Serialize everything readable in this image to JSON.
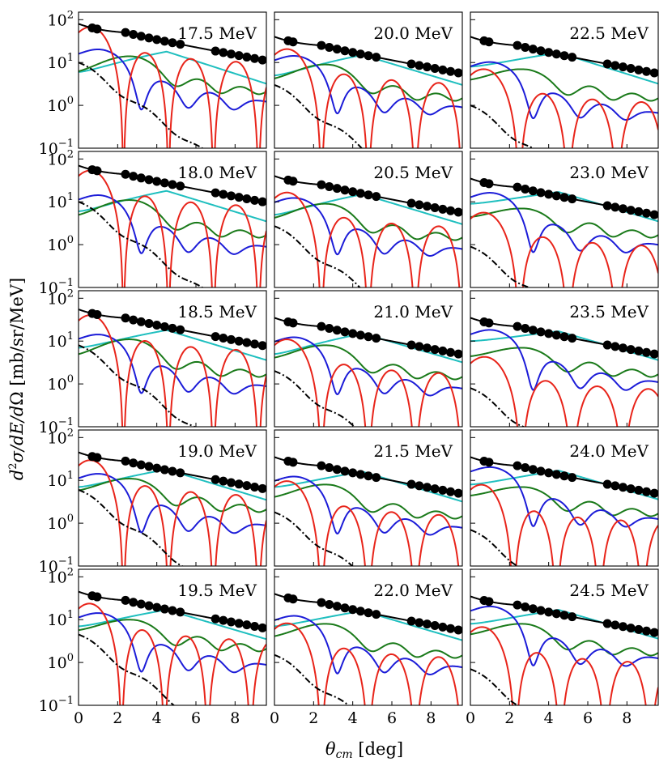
{
  "figure": {
    "xlabel": "θcm [deg]",
    "ylabel": "d²σ/dE/dΩ [mb/sr/MeV]"
  },
  "chart_data": {
    "type": "line",
    "layout": "5 rows x 3 columns of small multiples, shared axes",
    "x_axis": {
      "label": "θcm [deg]",
      "range": [
        0,
        9.6
      ],
      "ticks": [
        0,
        2,
        4,
        6,
        8
      ]
    },
    "y_axis": {
      "label": "d²σ/dE/dΩ [mb/sr/MeV]",
      "scale": "log",
      "range": [
        0.1,
        150
      ],
      "ticks": [
        {
          "base": "10",
          "exp": "2",
          "value": 100
        },
        {
          "base": "10",
          "exp": "1",
          "value": 10
        },
        {
          "base": "10",
          "exp": "0",
          "value": 1
        },
        {
          "base": "10",
          "exp": "−1",
          "value": 0.1
        }
      ]
    },
    "grid": false,
    "series_styles": [
      {
        "key": "total",
        "color": "#000000",
        "style": "solid"
      },
      {
        "key": "red",
        "color": "#e8241a",
        "style": "solid"
      },
      {
        "key": "blue",
        "color": "#1c1cd8",
        "style": "solid"
      },
      {
        "key": "green",
        "color": "#1a7a1a",
        "style": "solid"
      },
      {
        "key": "cyan",
        "color": "#1fbfbf",
        "style": "solid"
      },
      {
        "key": "dashdot",
        "color": "#000000",
        "style": "dash-dot"
      },
      {
        "key": "data",
        "color": "#000000",
        "style": "markers"
      }
    ],
    "panels": [
      {
        "label": "17.5 MeV",
        "total0": 80,
        "red0": 50,
        "redA": 2.3,
        "blue0": 10,
        "blueDip": 1.3,
        "green0": 5,
        "greenPk": 14,
        "cyan0": 6,
        "cyanPk": 18,
        "cyanEnd": 3.2,
        "dd0": 10,
        "dataStart": 0.7,
        "dataEnd": 9.5
      },
      {
        "label": "20.0 MeV",
        "total0": 40,
        "red0": 15,
        "redA": 2.4,
        "blue0": 7,
        "blueDip": 1.4,
        "green0": 3.5,
        "greenPk": 9,
        "cyan0": 5,
        "cyanPk": 15,
        "cyanEnd": 3.0,
        "dd0": 3,
        "dataStart": 0.7,
        "dataEnd": 9.5
      },
      {
        "label": "22.5 MeV",
        "total0": 40,
        "red0": 5,
        "redA": 2.5,
        "blue0": 5,
        "blueDip": 1.2,
        "green0": 3.5,
        "greenPk": 7,
        "cyan0": 8,
        "cyanPk": 17,
        "cyanEnd": 3.2,
        "dd0": 1,
        "dataStart": 0.7,
        "dataEnd": 9.5
      },
      {
        "label": "18.0 MeV",
        "total0": 70,
        "red0": 40,
        "redA": 2.3,
        "blue0": 7,
        "blueDip": 1.3,
        "green0": 4,
        "greenPk": 11,
        "cyan0": 6,
        "cyanPk": 18,
        "cyanEnd": 3.5,
        "dd0": 10,
        "dataStart": 0.7,
        "dataEnd": 9.5
      },
      {
        "label": "20.5 MeV",
        "total0": 40,
        "red0": 12,
        "redA": 2.4,
        "blue0": 6,
        "blueDip": 1.4,
        "green0": 3.5,
        "greenPk": 9,
        "cyan0": 5,
        "cyanPk": 15,
        "cyanEnd": 3.0,
        "dd0": 2.7,
        "dataStart": 0.7,
        "dataEnd": 9.5
      },
      {
        "label": "23.0 MeV",
        "total0": 35,
        "red0": 4,
        "redA": 2.5,
        "blue0": 8,
        "blueDip": 1.2,
        "green0": 4,
        "greenPk": 7,
        "cyan0": 9,
        "cyanPk": 17,
        "cyanEnd": 3.5,
        "dd0": 0.9,
        "dataStart": 0.7,
        "dataEnd": 9.5
      },
      {
        "label": "18.5 MeV",
        "total0": 55,
        "red0": 30,
        "redA": 2.3,
        "blue0": 7,
        "blueDip": 1.2,
        "green0": 4,
        "greenPk": 11,
        "cyan0": 7,
        "cyanPk": 18,
        "cyanEnd": 3.6,
        "dd0": 8,
        "dataStart": 0.7,
        "dataEnd": 9.5
      },
      {
        "label": "21.0 MeV",
        "total0": 35,
        "red0": 8,
        "redA": 2.4,
        "blue0": 6,
        "blueDip": 1.3,
        "green0": 3.5,
        "greenPk": 8,
        "cyan0": 5,
        "cyanPk": 15,
        "cyanEnd": 3.2,
        "dd0": 2,
        "dataStart": 0.7,
        "dataEnd": 9.5
      },
      {
        "label": "23.5 MeV",
        "total0": 35,
        "red0": 3,
        "redA": 2.6,
        "blue0": 9,
        "blueDip": 1.2,
        "green0": 4,
        "greenPk": 7,
        "cyan0": 10,
        "cyanPk": 17,
        "cyanEnd": 3.6,
        "dd0": 0.8,
        "dataStart": 0.7,
        "dataEnd": 9.5
      },
      {
        "label": "19.0 MeV",
        "total0": 45,
        "red0": 22,
        "redA": 2.3,
        "blue0": 7,
        "blueDip": 1.2,
        "green0": 5,
        "greenPk": 11,
        "cyan0": 7,
        "cyanPk": 18,
        "cyanEnd": 3.5,
        "dd0": 6,
        "dataStart": 0.7,
        "dataEnd": 9.5
      },
      {
        "label": "21.5 MeV",
        "total0": 35,
        "red0": 7,
        "redA": 2.4,
        "blue0": 6,
        "blueDip": 1.3,
        "green0": 3.5,
        "greenPk": 8,
        "cyan0": 7,
        "cyanPk": 16,
        "cyanEnd": 3.2,
        "dd0": 1.8,
        "dataStart": 0.7,
        "dataEnd": 9.5
      },
      {
        "label": "24.0 MeV",
        "total0": 35,
        "red0": 6,
        "redA": 2.2,
        "blue0": 10,
        "blueDip": 1.6,
        "green0": 4,
        "greenPk": 7,
        "cyan0": 8,
        "cyanPk": 17,
        "cyanEnd": 3.6,
        "dd0": 0.7,
        "dataStart": 0.7,
        "dataEnd": 9.5
      },
      {
        "label": "19.5 MeV",
        "total0": 45,
        "red0": 18,
        "redA": 2.2,
        "blue0": 7,
        "blueDip": 1.2,
        "green0": 5,
        "greenPk": 10,
        "cyan0": 7,
        "cyanPk": 17,
        "cyanEnd": 3.5,
        "dd0": 4.5,
        "dataStart": 0.7,
        "dataEnd": 9.5
      },
      {
        "label": "22.0 MeV",
        "total0": 40,
        "red0": 6,
        "redA": 2.4,
        "blue0": 6,
        "blueDip": 1.2,
        "green0": 3.5,
        "greenPk": 8,
        "cyan0": 7,
        "cyanPk": 16,
        "cyanEnd": 3.3,
        "dd0": 1.5,
        "dataStart": 0.7,
        "dataEnd": 9.5
      },
      {
        "label": "24.5 MeV",
        "total0": 35,
        "red0": 5,
        "redA": 2.3,
        "blue0": 10,
        "blueDip": 1.6,
        "green0": 4,
        "greenPk": 8,
        "cyan0": 8,
        "cyanPk": 17,
        "cyanEnd": 3.6,
        "dd0": 0.7,
        "dataStart": 0.7,
        "dataEnd": 9.5
      }
    ]
  }
}
